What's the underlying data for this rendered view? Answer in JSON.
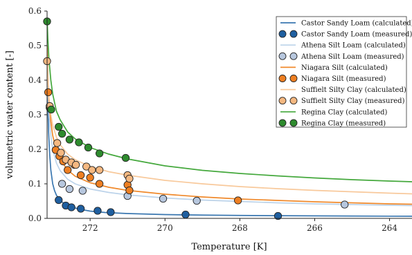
{
  "chart_data": {
    "type": "line",
    "title": "",
    "xlabel": "Temperature [K]",
    "ylabel": "volumetric water content [-]",
    "x_reversed": true,
    "xlim": [
      273.15,
      263.4
    ],
    "ylim": [
      0.0,
      0.6
    ],
    "x_ticks": [
      272,
      270,
      268,
      266,
      264
    ],
    "y_ticks": [
      0.0,
      0.1,
      0.2,
      0.3,
      0.4,
      0.5,
      0.6
    ],
    "x_tick_labels": [
      "272",
      "270",
      "268",
      "266",
      "264"
    ],
    "y_tick_labels": [
      "0.0",
      "0.1",
      "0.2",
      "0.3",
      "0.4",
      "0.5",
      "0.6"
    ],
    "grid": false,
    "legend_position": "top-right",
    "series": [
      {
        "name": "Castor Sandy Loam (calculated)",
        "kind": "line",
        "color": "#3a77b0",
        "x": [
          273.15,
          273.13,
          273.11,
          273.08,
          273.05,
          273.0,
          272.95,
          272.9,
          272.8,
          272.7,
          272.5,
          272.3,
          272.0,
          271.6,
          271.0,
          270.0,
          269.0,
          268.0,
          267.0,
          266.0,
          265.0,
          264.0,
          263.4
        ],
        "y": [
          0.42,
          0.33,
          0.25,
          0.185,
          0.14,
          0.1,
          0.08,
          0.067,
          0.052,
          0.043,
          0.033,
          0.027,
          0.021,
          0.017,
          0.014,
          0.011,
          0.0095,
          0.0085,
          0.0078,
          0.0072,
          0.0068,
          0.0064,
          0.0062
        ]
      },
      {
        "name": "Castor Sandy Loam (measured)",
        "kind": "scatter",
        "color": "#1f5fa0",
        "x": [
          272.84,
          272.65,
          272.5,
          272.25,
          271.8,
          271.45,
          269.45,
          266.98
        ],
        "y": [
          0.053,
          0.037,
          0.032,
          0.028,
          0.022,
          0.018,
          0.011,
          0.007
        ]
      },
      {
        "name": "Athena Silt Loam (calculated)",
        "kind": "line",
        "color": "#bcd3ea",
        "x": [
          273.15,
          273.13,
          273.1,
          273.05,
          273.0,
          272.9,
          272.8,
          272.6,
          272.4,
          272.0,
          271.5,
          271.0,
          270.0,
          269.0,
          268.0,
          267.0,
          266.0,
          265.0,
          264.0,
          263.4
        ],
        "y": [
          0.44,
          0.37,
          0.3,
          0.24,
          0.2,
          0.16,
          0.138,
          0.113,
          0.1,
          0.085,
          0.075,
          0.068,
          0.059,
          0.053,
          0.049,
          0.045,
          0.042,
          0.04,
          0.038,
          0.037
        ]
      },
      {
        "name": "Athena Silt Loam (measured)",
        "kind": "scatter",
        "color": "#b7c7de",
        "x": [
          272.75,
          272.55,
          272.2,
          271.0,
          270.05,
          269.15,
          265.2
        ],
        "y": [
          0.1,
          0.085,
          0.08,
          0.065,
          0.057,
          0.051,
          0.04
        ]
      },
      {
        "name": "Niagara Silt (calculated)",
        "kind": "line",
        "color": "#f0892b",
        "x": [
          273.15,
          273.13,
          273.1,
          273.05,
          273.0,
          272.9,
          272.8,
          272.6,
          272.4,
          272.0,
          271.5,
          271.0,
          270.0,
          269.0,
          268.0,
          267.0,
          266.0,
          265.0,
          264.0,
          263.4
        ],
        "y": [
          0.5,
          0.42,
          0.34,
          0.28,
          0.24,
          0.195,
          0.17,
          0.14,
          0.122,
          0.103,
          0.09,
          0.081,
          0.07,
          0.062,
          0.056,
          0.052,
          0.048,
          0.045,
          0.042,
          0.041
        ]
      },
      {
        "name": "Niagara Silt (measured)",
        "kind": "scatter",
        "color": "#ee7f22",
        "x": [
          273.12,
          273.08,
          272.92,
          272.82,
          272.72,
          272.6,
          272.42,
          272.25,
          272.0,
          271.75,
          271.0,
          270.95,
          268.05
        ],
        "y": [
          0.365,
          0.32,
          0.198,
          0.18,
          0.165,
          0.14,
          0.155,
          0.125,
          0.118,
          0.1,
          0.097,
          0.081,
          0.052
        ]
      },
      {
        "name": "Suffielt Silty Clay (calculated)",
        "kind": "line",
        "color": "#f8c99b",
        "x": [
          273.15,
          273.13,
          273.1,
          273.05,
          273.0,
          272.9,
          272.8,
          272.6,
          272.4,
          272.0,
          271.5,
          271.0,
          270.0,
          269.0,
          268.0,
          267.0,
          266.0,
          265.0,
          264.0,
          263.4
        ],
        "y": [
          0.46,
          0.41,
          0.35,
          0.3,
          0.27,
          0.235,
          0.213,
          0.186,
          0.17,
          0.15,
          0.135,
          0.125,
          0.11,
          0.1,
          0.092,
          0.086,
          0.081,
          0.077,
          0.073,
          0.071
        ]
      },
      {
        "name": "Suffielt Silty Clay (measured)",
        "kind": "scatter",
        "color": "#f5b881",
        "x": [
          273.15,
          273.08,
          272.88,
          272.78,
          272.65,
          272.5,
          272.38,
          272.1,
          271.95,
          271.75,
          271.0,
          270.95
        ],
        "y": [
          0.455,
          0.325,
          0.218,
          0.19,
          0.17,
          0.162,
          0.155,
          0.15,
          0.14,
          0.14,
          0.125,
          0.115
        ]
      },
      {
        "name": "Regina Clay (calculated)",
        "kind": "line",
        "color": "#44a83c",
        "x": [
          273.15,
          273.13,
          273.1,
          273.05,
          273.0,
          272.9,
          272.8,
          272.6,
          272.4,
          272.0,
          271.5,
          271.0,
          270.0,
          269.0,
          268.0,
          267.0,
          266.0,
          265.0,
          264.0,
          263.4
        ],
        "y": [
          0.58,
          0.52,
          0.46,
          0.4,
          0.36,
          0.31,
          0.285,
          0.25,
          0.23,
          0.205,
          0.186,
          0.172,
          0.152,
          0.139,
          0.13,
          0.123,
          0.117,
          0.112,
          0.108,
          0.106
        ]
      },
      {
        "name": "Regina Clay (measured)",
        "kind": "scatter",
        "color": "#2e8b2e",
        "x": [
          273.15,
          273.04,
          272.84,
          272.75,
          272.55,
          272.3,
          272.05,
          271.75,
          271.05
        ],
        "y": [
          0.57,
          0.315,
          0.265,
          0.245,
          0.228,
          0.22,
          0.205,
          0.188,
          0.175
        ]
      }
    ]
  }
}
